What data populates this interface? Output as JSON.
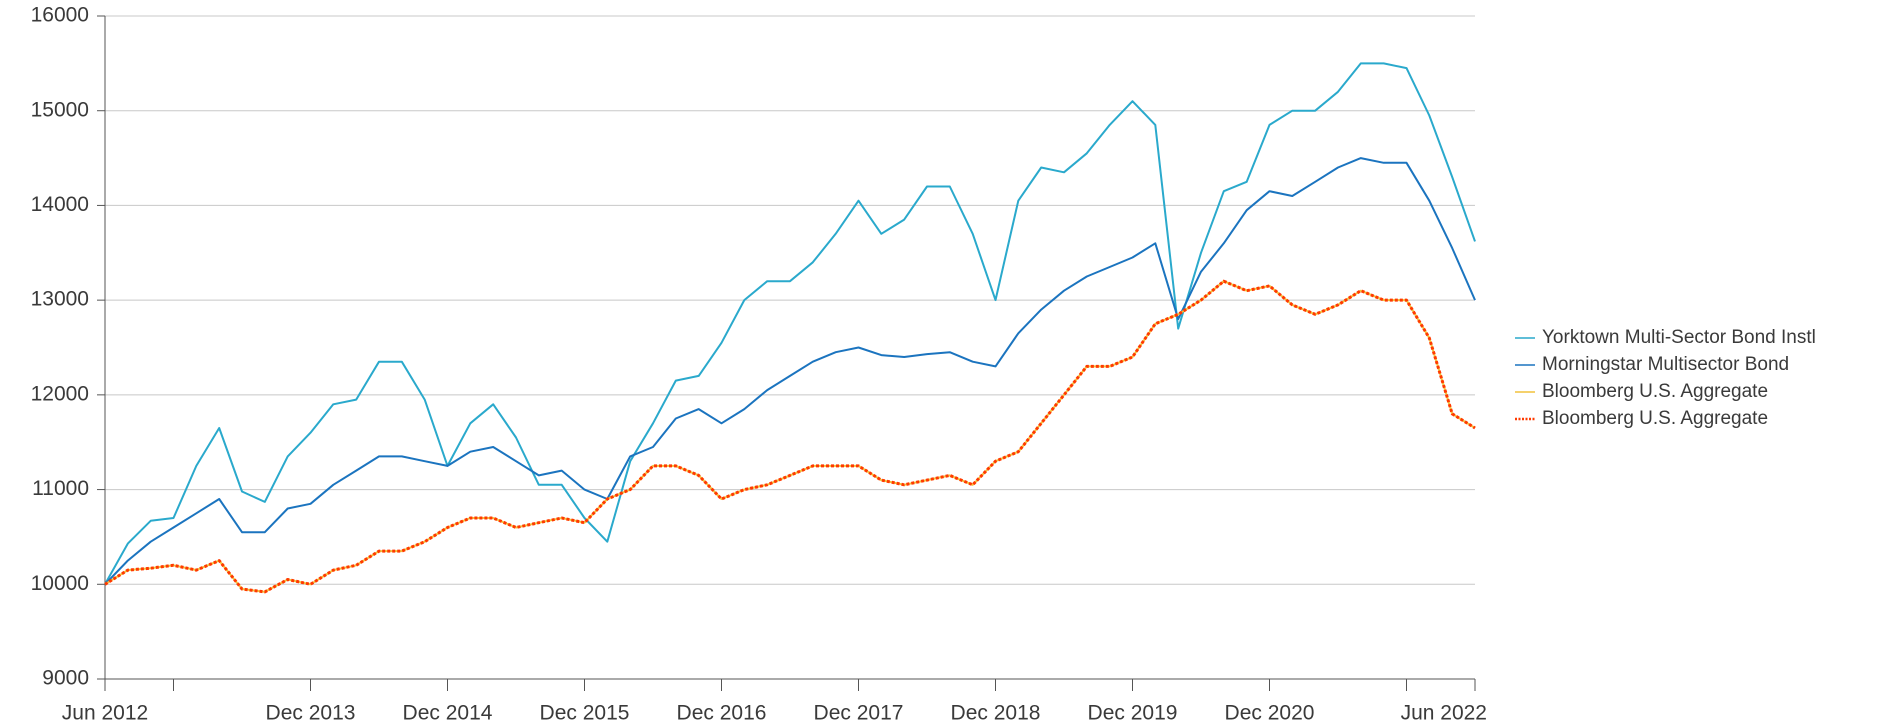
{
  "chart_data": {
    "type": "line",
    "xlim": [
      "2012-06",
      "2022-06"
    ],
    "xticks": [
      {
        "value": "2012-06",
        "label": "Jun 2012"
      },
      {
        "value": "2012-12",
        "label": null
      },
      {
        "value": "2013-12",
        "label": "Dec 2013"
      },
      {
        "value": "2014-12",
        "label": "Dec 2014"
      },
      {
        "value": "2015-12",
        "label": "Dec 2015"
      },
      {
        "value": "2016-12",
        "label": "Dec 2016"
      },
      {
        "value": "2017-12",
        "label": "Dec 2017"
      },
      {
        "value": "2018-12",
        "label": "Dec 2018"
      },
      {
        "value": "2019-12",
        "label": "Dec 2019"
      },
      {
        "value": "2020-12",
        "label": "Dec 2020"
      },
      {
        "value": "2021-12",
        "label": null
      },
      {
        "value": "2022-06",
        "label": "Jun 2022"
      }
    ],
    "ylim": [
      9000,
      16000
    ],
    "yticks": [
      9000,
      10000,
      11000,
      12000,
      13000,
      14000,
      15000,
      16000
    ],
    "grid": true,
    "legend": "right",
    "x": [
      "2012-06",
      "2012-08",
      "2012-10",
      "2012-12",
      "2013-02",
      "2013-04",
      "2013-06",
      "2013-08",
      "2013-10",
      "2013-12",
      "2014-02",
      "2014-04",
      "2014-06",
      "2014-08",
      "2014-10",
      "2014-12",
      "2015-02",
      "2015-04",
      "2015-06",
      "2015-08",
      "2015-10",
      "2015-12",
      "2016-02",
      "2016-04",
      "2016-06",
      "2016-08",
      "2016-10",
      "2016-12",
      "2017-02",
      "2017-04",
      "2017-06",
      "2017-08",
      "2017-10",
      "2017-12",
      "2018-02",
      "2018-04",
      "2018-06",
      "2018-08",
      "2018-10",
      "2018-12",
      "2019-02",
      "2019-04",
      "2019-06",
      "2019-08",
      "2019-10",
      "2019-12",
      "2020-02",
      "2020-04",
      "2020-06",
      "2020-08",
      "2020-10",
      "2020-12",
      "2021-02",
      "2021-04",
      "2021-06",
      "2021-08",
      "2021-10",
      "2021-12",
      "2022-02",
      "2022-04",
      "2022-06"
    ],
    "series": [
      {
        "name": "Yorktown Multi-Sector Bond Instl",
        "color": "#2aa9cc",
        "style": "solid",
        "values": [
          10000,
          10430,
          10670,
          10700,
          11250,
          11650,
          10980,
          10870,
          11350,
          11600,
          11900,
          11950,
          12350,
          12350,
          11950,
          11250,
          11700,
          11900,
          11550,
          11050,
          11050,
          10700,
          10450,
          11300,
          11700,
          12150,
          12200,
          12550,
          13000,
          13200,
          13200,
          13400,
          13700,
          14050,
          13700,
          13850,
          14200,
          14200,
          13700,
          13000,
          14050,
          14400,
          14350,
          14550,
          14850,
          15100,
          14850,
          12700,
          13500,
          14150,
          14250,
          14850,
          15000,
          15000,
          15200,
          15500,
          15500,
          15450,
          14950,
          14300,
          13620
        ]
      },
      {
        "name": "Morningstar Multisector Bond",
        "color": "#1b74bf",
        "style": "solid",
        "values": [
          10000,
          10250,
          10450,
          10600,
          10750,
          10900,
          10550,
          10550,
          10800,
          10850,
          11050,
          11200,
          11350,
          11350,
          11300,
          11250,
          11400,
          11450,
          11300,
          11150,
          11200,
          11000,
          10900,
          11350,
          11450,
          11750,
          11850,
          11700,
          11850,
          12050,
          12200,
          12350,
          12450,
          12500,
          12420,
          12400,
          12430,
          12450,
          12350,
          12300,
          12650,
          12900,
          13100,
          13250,
          13350,
          13450,
          13600,
          12800,
          13300,
          13600,
          13950,
          14150,
          14100,
          14250,
          14400,
          14500,
          14450,
          14450,
          14050,
          13550,
          13000
        ]
      },
      {
        "name": "Bloomberg U.S. Aggregate",
        "color": "#f2c23c",
        "style": "solid",
        "values": [
          10000,
          10150,
          10170,
          10200,
          10150,
          10250,
          9950,
          9920,
          10050,
          10000,
          10150,
          10200,
          10350,
          10350,
          10450,
          10600,
          10700,
          10700,
          10600,
          10650,
          10700,
          10650,
          10900,
          11000,
          11250,
          11250,
          11150,
          10900,
          11000,
          11050,
          11150,
          11250,
          11250,
          11250,
          11100,
          11050,
          11100,
          11150,
          11050,
          11300,
          11400,
          11700,
          12000,
          12300,
          12300,
          12400,
          12750,
          12850,
          13000,
          13200,
          13100,
          13150,
          12950,
          12850,
          12950,
          13100,
          13000,
          13000,
          12600,
          11800,
          11650
        ]
      },
      {
        "name": "Bloomberg U.S. Aggregate",
        "color": "#ff3a00",
        "style": "dotted",
        "values": [
          10000,
          10150,
          10170,
          10200,
          10150,
          10250,
          9950,
          9920,
          10050,
          10000,
          10150,
          10200,
          10350,
          10350,
          10450,
          10600,
          10700,
          10700,
          10600,
          10650,
          10700,
          10650,
          10900,
          11000,
          11250,
          11250,
          11150,
          10900,
          11000,
          11050,
          11150,
          11250,
          11250,
          11250,
          11100,
          11050,
          11100,
          11150,
          11050,
          11300,
          11400,
          11700,
          12000,
          12300,
          12300,
          12400,
          12750,
          12850,
          13000,
          13200,
          13100,
          13150,
          12950,
          12850,
          12950,
          13100,
          13000,
          13000,
          12600,
          11800,
          11650
        ]
      }
    ]
  }
}
